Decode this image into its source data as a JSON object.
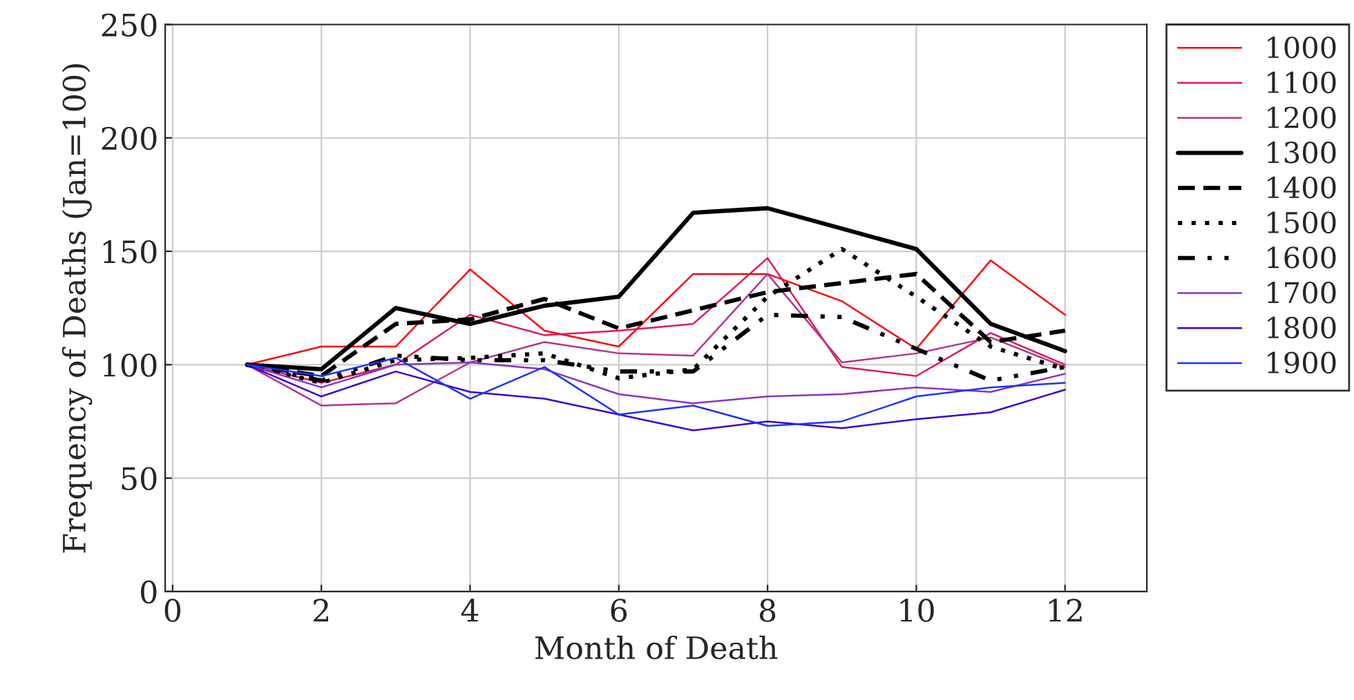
{
  "chart_data": {
    "type": "line",
    "xlabel": "Month of Death",
    "ylabel": "Frequency of Deaths (Jan=100)",
    "x": [
      1,
      2,
      3,
      4,
      5,
      6,
      7,
      8,
      9,
      10,
      11,
      12
    ],
    "series": [
      {
        "name": "1000",
        "color": "#ff0000",
        "line_style": "solid",
        "values": [
          100,
          108,
          108,
          142,
          115,
          108,
          140,
          140,
          128,
          107,
          146,
          122
        ]
      },
      {
        "name": "1100",
        "color": "#e0194f",
        "line_style": "solid",
        "values": [
          100,
          92,
          100,
          122,
          113,
          115,
          118,
          147,
          99,
          95,
          114,
          100
        ]
      },
      {
        "name": "1200",
        "color": "#b5338f",
        "line_style": "solid",
        "values": [
          100,
          82,
          83,
          101,
          110,
          105,
          104,
          140,
          101,
          105,
          112,
          99
        ]
      },
      {
        "name": "1300",
        "color": "#000000",
        "line_style": "solid",
        "values": [
          100,
          98,
          125,
          118,
          126,
          130,
          167,
          169,
          160,
          151,
          118,
          106
        ]
      },
      {
        "name": "1400",
        "color": "#000000",
        "line_style": "dashed",
        "values": [
          100,
          95,
          118,
          120,
          129,
          116,
          124,
          132,
          136,
          140,
          110,
          115
        ]
      },
      {
        "name": "1500",
        "color": "#000000",
        "line_style": "dotted",
        "values": [
          100,
          92,
          102,
          103,
          105,
          94,
          98,
          130,
          151,
          130,
          108,
          98
        ]
      },
      {
        "name": "1600",
        "color": "#000000",
        "line_style": "dashdot",
        "values": [
          100,
          93,
          104,
          102,
          102,
          97,
          97,
          122,
          121,
          107,
          93,
          99
        ]
      },
      {
        "name": "1700",
        "color": "#8a33c0",
        "line_style": "solid",
        "values": [
          100,
          90,
          100,
          101,
          98,
          87,
          83,
          86,
          87,
          90,
          88,
          96
        ]
      },
      {
        "name": "1800",
        "color": "#3a00d0",
        "line_style": "solid",
        "values": [
          100,
          86,
          97,
          88,
          85,
          78,
          71,
          75,
          72,
          76,
          79,
          89
        ]
      },
      {
        "name": "1900",
        "color": "#1a33ff",
        "line_style": "solid",
        "values": [
          100,
          95,
          103,
          85,
          99,
          78,
          82,
          73,
          75,
          86,
          90,
          92
        ]
      }
    ],
    "xlim": [
      -0.1,
      13.1
    ],
    "ylim": [
      0,
      250
    ],
    "xticks": [
      0,
      2,
      4,
      6,
      8,
      10,
      12
    ],
    "yticks": [
      0,
      50,
      100,
      150,
      200,
      250
    ],
    "grid": true,
    "legend": "right",
    "marker": "none"
  }
}
